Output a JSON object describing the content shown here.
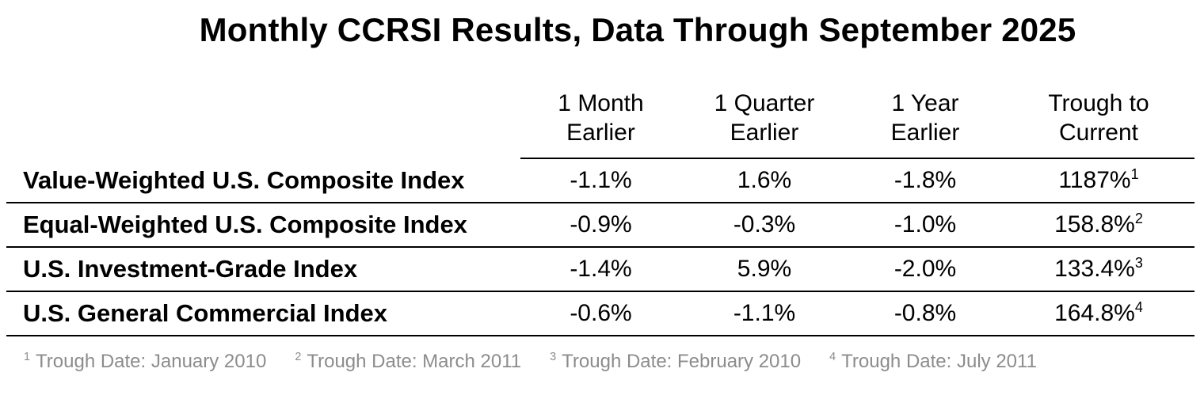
{
  "title": "Monthly CCRSI Results, Data Through September 2025",
  "table": {
    "column_headers": [
      {
        "line1": "1 Month",
        "line2": "Earlier"
      },
      {
        "line1": "1 Quarter",
        "line2": "Earlier"
      },
      {
        "line1": "1 Year",
        "line2": "Earlier"
      },
      {
        "line1": "Trough to",
        "line2": "Current"
      }
    ],
    "rows": [
      {
        "label": "Value-Weighted U.S. Composite Index",
        "one_month_earlier": "-1.1%",
        "one_quarter_earlier": "1.6%",
        "one_year_earlier": "-1.8%",
        "trough_to_current": "1187%",
        "footnote_ref": "1"
      },
      {
        "label": "Equal-Weighted U.S. Composite Index",
        "one_month_earlier": "-0.9%",
        "one_quarter_earlier": "-0.3%",
        "one_year_earlier": "-1.0%",
        "trough_to_current": "158.8%",
        "footnote_ref": "2"
      },
      {
        "label": "U.S. Investment-Grade Index",
        "one_month_earlier": "-1.4%",
        "one_quarter_earlier": "5.9%",
        "one_year_earlier": "-2.0%",
        "trough_to_current": "133.4%",
        "footnote_ref": "3"
      },
      {
        "label": "U.S. General Commercial Index",
        "one_month_earlier": "-0.6%",
        "one_quarter_earlier": "-1.1%",
        "one_year_earlier": "-0.8%",
        "trough_to_current": "164.8%",
        "footnote_ref": "4"
      }
    ]
  },
  "footnotes": [
    {
      "ref": "1",
      "text": "Trough Date: January 2010"
    },
    {
      "ref": "2",
      "text": "Trough Date: March 2011"
    },
    {
      "ref": "3",
      "text": "Trough Date: February 2010"
    },
    {
      "ref": "4",
      "text": "Trough Date: July 2011"
    }
  ],
  "colors": {
    "text": "#000000",
    "rule": "#000000",
    "footnote_text": "#8c8c8c",
    "background": "#ffffff"
  },
  "chart_data": {
    "type": "table",
    "title": "Monthly CCRSI Results, Data Through September 2025",
    "columns": [
      "",
      "1 Month Earlier",
      "1 Quarter Earlier",
      "1 Year Earlier",
      "Trough to Current"
    ],
    "rows": [
      [
        "Value-Weighted U.S. Composite Index",
        "-1.1%",
        "1.6%",
        "-1.8%",
        "1187% (footnote 1)"
      ],
      [
        "Equal-Weighted U.S. Composite Index",
        "-0.9%",
        "-0.3%",
        "-1.0%",
        "158.8% (footnote 2)"
      ],
      [
        "U.S. Investment-Grade Index",
        "-1.4%",
        "5.9%",
        "-2.0%",
        "133.4% (footnote 3)"
      ],
      [
        "U.S. General Commercial Index",
        "-0.6%",
        "-1.1%",
        "-0.8%",
        "164.8% (footnote 4)"
      ]
    ],
    "footnotes": [
      "1 Trough Date: January 2010",
      "2 Trough Date: March 2011",
      "3 Trough Date: February 2010",
      "4 Trough Date: July 2011"
    ]
  }
}
